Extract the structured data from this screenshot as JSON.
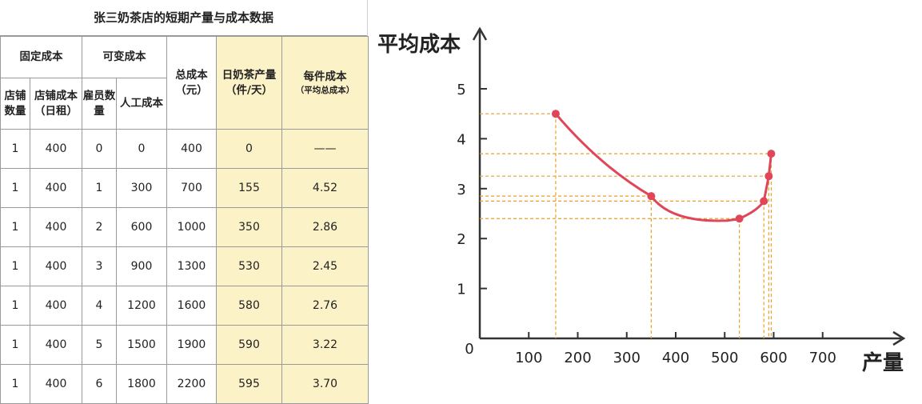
{
  "table": {
    "title": "张三奶茶店的短期产量与成本数据",
    "headers": {
      "fixed_cost": "固定成本",
      "variable_cost": "可变成本",
      "total_cost": "总成本（元）",
      "daily_output": "日奶茶产量（件/天）",
      "unit_cost": "每件成本",
      "unit_cost_sub": "（平均总成本）",
      "store_count": "店铺数量",
      "store_rent": "店铺成本（日租）",
      "employee_count": "雇员数量",
      "labor_cost": "人工成本"
    },
    "rows": [
      [
        "1",
        "400",
        "0",
        "0",
        "400",
        "0",
        "——"
      ],
      [
        "1",
        "400",
        "1",
        "300",
        "700",
        "155",
        "4.52"
      ],
      [
        "1",
        "400",
        "2",
        "600",
        "1000",
        "350",
        "2.86"
      ],
      [
        "1",
        "400",
        "3",
        "900",
        "1300",
        "530",
        "2.45"
      ],
      [
        "1",
        "400",
        "4",
        "1200",
        "1600",
        "580",
        "2.76"
      ],
      [
        "1",
        "400",
        "5",
        "1500",
        "1900",
        "590",
        "3.22"
      ],
      [
        "1",
        "400",
        "6",
        "1800",
        "2200",
        "595",
        "3.70"
      ]
    ]
  },
  "chart_data": {
    "type": "line",
    "ylabel": "平均成本",
    "xlabel": "产量",
    "xlim": [
      0,
      800
    ],
    "ylim": [
      0,
      5.8
    ],
    "x_ticks": [
      "100",
      "200",
      "300",
      "400",
      "500",
      "600",
      "700"
    ],
    "y_ticks": [
      "1",
      "2",
      "3",
      "4",
      "5"
    ],
    "origin_label": "0",
    "series": [
      {
        "points": [
          [
            155,
            4.5
          ],
          [
            350,
            2.85
          ],
          [
            530,
            2.4
          ],
          [
            580,
            2.75
          ],
          [
            590,
            3.25
          ],
          [
            595,
            3.7
          ]
        ],
        "color": "#e04558"
      }
    ],
    "curve_min": [
      505,
      2.36
    ],
    "guide_color": "#e8a02a"
  }
}
